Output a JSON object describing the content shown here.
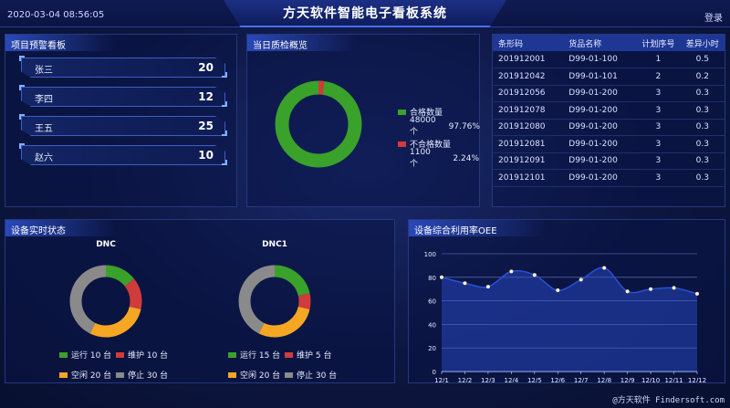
{
  "header": {
    "datetime": "2020-03-04 08:56:05",
    "title": "方天软件智能电子看板系统",
    "login": "登录"
  },
  "warnings": {
    "title": "项目预警看板",
    "items": [
      {
        "name": "张三",
        "value": "20"
      },
      {
        "name": "李四",
        "value": "12"
      },
      {
        "name": "王五",
        "value": "25"
      },
      {
        "name": "赵六",
        "value": "10"
      }
    ]
  },
  "quality": {
    "title": "当日质检概览",
    "pass_label": "合格数量",
    "pass_count": "48000个",
    "pass_pct": "97.76%",
    "fail_label": "不合格数量",
    "fail_count": "1100个",
    "fail_pct": "2.24%",
    "pass_color": "#3aa12a",
    "fail_color": "#d03b3b"
  },
  "barcode_table": {
    "headers": [
      "条形码",
      "货品名称",
      "计划序号",
      "差异小时"
    ],
    "rows": [
      [
        "201912001",
        "D99-01-100",
        "1",
        "0.5"
      ],
      [
        "201912042",
        "D99-01-101",
        "2",
        "0.2"
      ],
      [
        "201912056",
        "D99-01-200",
        "3",
        "0.3"
      ],
      [
        "201912078",
        "D99-01-200",
        "3",
        "0.3"
      ],
      [
        "201912080",
        "D99-01-200",
        "3",
        "0.3"
      ],
      [
        "201912081",
        "D99-01-200",
        "3",
        "0.3"
      ],
      [
        "201912091",
        "D99-01-200",
        "3",
        "0.3"
      ],
      [
        "201912101",
        "D99-01-200",
        "3",
        "0.3"
      ]
    ]
  },
  "device_status": {
    "title": "设备实时状态",
    "charts": [
      {
        "name": "DNC",
        "legend": [
          {
            "label": "运行 10 台",
            "value": 10,
            "color": "#3aa12a"
          },
          {
            "label": "维护 10 台",
            "value": 10,
            "color": "#d03b3b"
          },
          {
            "label": "空闲 20 台",
            "value": 20,
            "color": "#f5a623"
          },
          {
            "label": "停止 30 台",
            "value": 30,
            "color": "#8a8a8a"
          }
        ]
      },
      {
        "name": "DNC1",
        "legend": [
          {
            "label": "运行 15 台",
            "value": 15,
            "color": "#3aa12a"
          },
          {
            "label": "维护 5 台",
            "value": 5,
            "color": "#d03b3b"
          },
          {
            "label": "空闲 20 台",
            "value": 20,
            "color": "#f5a623"
          },
          {
            "label": "停止 30 台",
            "value": 30,
            "color": "#8a8a8a"
          }
        ]
      }
    ]
  },
  "oee": {
    "title": "设备综合利用率OEE"
  },
  "chart_data": {
    "type": "area",
    "title": "",
    "xlabel": "",
    "ylabel": "",
    "categories": [
      "12/1",
      "12/2",
      "12/3",
      "12/4",
      "12/5",
      "12/6",
      "12/7",
      "12/8",
      "12/9",
      "12/10",
      "12/11",
      "12/12"
    ],
    "values": [
      80,
      75,
      72,
      85,
      82,
      69,
      78,
      88,
      68,
      70,
      71,
      66
    ],
    "ylim": [
      0,
      100
    ],
    "yticks": [
      0,
      20,
      40,
      60,
      80,
      100
    ],
    "grid": true,
    "line_color": "#2c4fd6",
    "point_color": "#fff2cc"
  },
  "footer": {
    "watermark": "@方天软件 Findersoft.com"
  }
}
